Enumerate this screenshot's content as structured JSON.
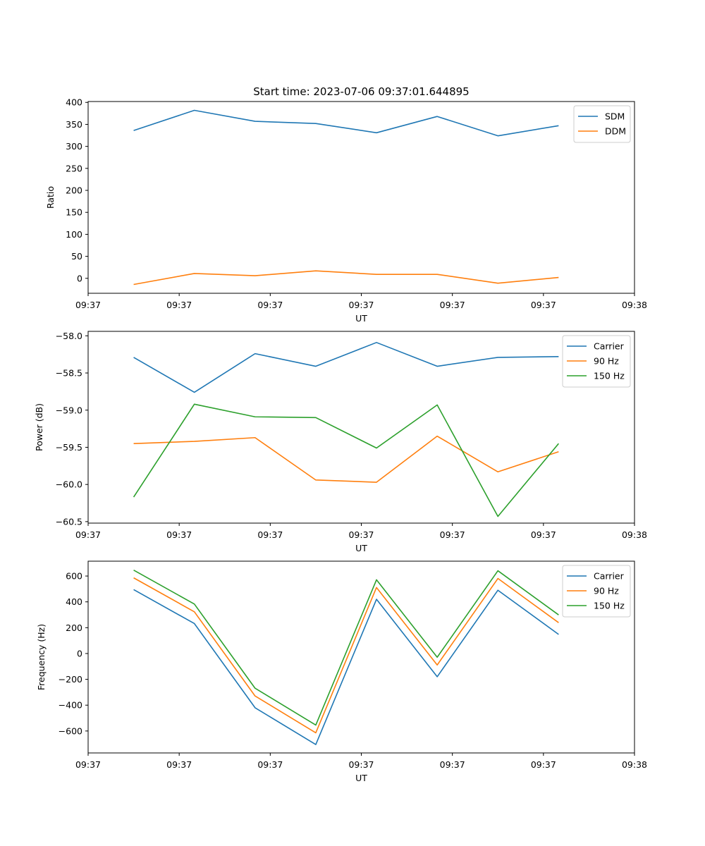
{
  "chart_data": [
    {
      "type": "line",
      "title": "Start time: 2023-07-06 09:37:01.644895",
      "xlabel": "UT",
      "ylabel": "Ratio",
      "x": [
        1,
        2,
        3,
        4,
        5,
        6,
        7,
        8
      ],
      "xlim": [
        0.25,
        9.25
      ],
      "x_ticks": [
        0.25,
        1.75,
        3.25,
        4.75,
        6.25,
        7.75,
        9.25
      ],
      "x_tick_labels": [
        "09:37",
        "09:37",
        "09:37",
        "09:37",
        "09:37",
        "09:37",
        "09:38"
      ],
      "ylim": [
        -34,
        402
      ],
      "y_ticks": [
        0,
        50,
        100,
        150,
        200,
        250,
        300,
        350,
        400
      ],
      "y_tick_labels": [
        "0",
        "50",
        "100",
        "150",
        "200",
        "250",
        "300",
        "350",
        "400"
      ],
      "grid": false,
      "legend": "top-right",
      "series": [
        {
          "name": "SDM",
          "color": "#1f77b4",
          "values": [
            336,
            382,
            357,
            352,
            331,
            368,
            324,
            347
          ]
        },
        {
          "name": "DDM",
          "color": "#ff7f0e",
          "values": [
            -14,
            11,
            6,
            17,
            9,
            9,
            -11,
            2
          ]
        }
      ]
    },
    {
      "type": "line",
      "title": "",
      "xlabel": "UT",
      "ylabel": "Power (dB)",
      "x": [
        1,
        2,
        3,
        4,
        5,
        6,
        7,
        8
      ],
      "xlim": [
        0.25,
        9.25
      ],
      "x_ticks": [
        0.25,
        1.75,
        3.25,
        4.75,
        6.25,
        7.75,
        9.25
      ],
      "x_tick_labels": [
        "09:37",
        "09:37",
        "09:37",
        "09:37",
        "09:37",
        "09:37",
        "09:38"
      ],
      "ylim": [
        -60.52,
        -57.94
      ],
      "y_ticks": [
        -58.0,
        -58.5,
        -59.0,
        -59.5,
        -60.0,
        -60.5
      ],
      "y_tick_labels": [
        "−58.0",
        "−58.5",
        "−59.0",
        "−59.5",
        "−60.0",
        "−60.5"
      ],
      "grid": false,
      "legend": "top-right",
      "series": [
        {
          "name": "Carrier",
          "color": "#1f77b4",
          "values": [
            -58.29,
            -58.76,
            -58.24,
            -58.41,
            -58.09,
            -58.41,
            -58.29,
            -58.28
          ]
        },
        {
          "name": "90 Hz",
          "color": "#ff7f0e",
          "values": [
            -59.45,
            -59.42,
            -59.37,
            -59.94,
            -59.97,
            -59.35,
            -59.83,
            -59.56
          ]
        },
        {
          "name": "150 Hz",
          "color": "#2ca02c",
          "values": [
            -60.17,
            -58.92,
            -59.09,
            -59.1,
            -59.51,
            -58.93,
            -60.43,
            -59.45
          ]
        }
      ]
    },
    {
      "type": "line",
      "title": "",
      "xlabel": "UT",
      "ylabel": "Frequency (Hz)",
      "x": [
        1,
        2,
        3,
        4,
        5,
        6,
        7,
        8
      ],
      "xlim": [
        0.25,
        9.25
      ],
      "x_ticks": [
        0.25,
        1.75,
        3.25,
        4.75,
        6.25,
        7.75,
        9.25
      ],
      "x_tick_labels": [
        "09:37",
        "09:37",
        "09:37",
        "09:37",
        "09:37",
        "09:37",
        "09:38"
      ],
      "ylim": [
        -770,
        715
      ],
      "y_ticks": [
        600,
        400,
        200,
        0,
        -200,
        -400,
        -600
      ],
      "y_tick_labels": [
        "600",
        "400",
        "200",
        "0",
        "−200",
        "−400",
        "−600"
      ],
      "grid": false,
      "legend": "top-right",
      "series": [
        {
          "name": "Carrier",
          "color": "#1f77b4",
          "values": [
            495,
            232,
            -420,
            -705,
            420,
            -180,
            490,
            148
          ]
        },
        {
          "name": "90 Hz",
          "color": "#ff7f0e",
          "values": [
            586,
            323,
            -329,
            -614,
            511,
            -89,
            581,
            239
          ]
        },
        {
          "name": "150 Hz",
          "color": "#2ca02c",
          "values": [
            646,
            383,
            -269,
            -554,
            571,
            -29,
            641,
            299
          ]
        }
      ]
    }
  ]
}
